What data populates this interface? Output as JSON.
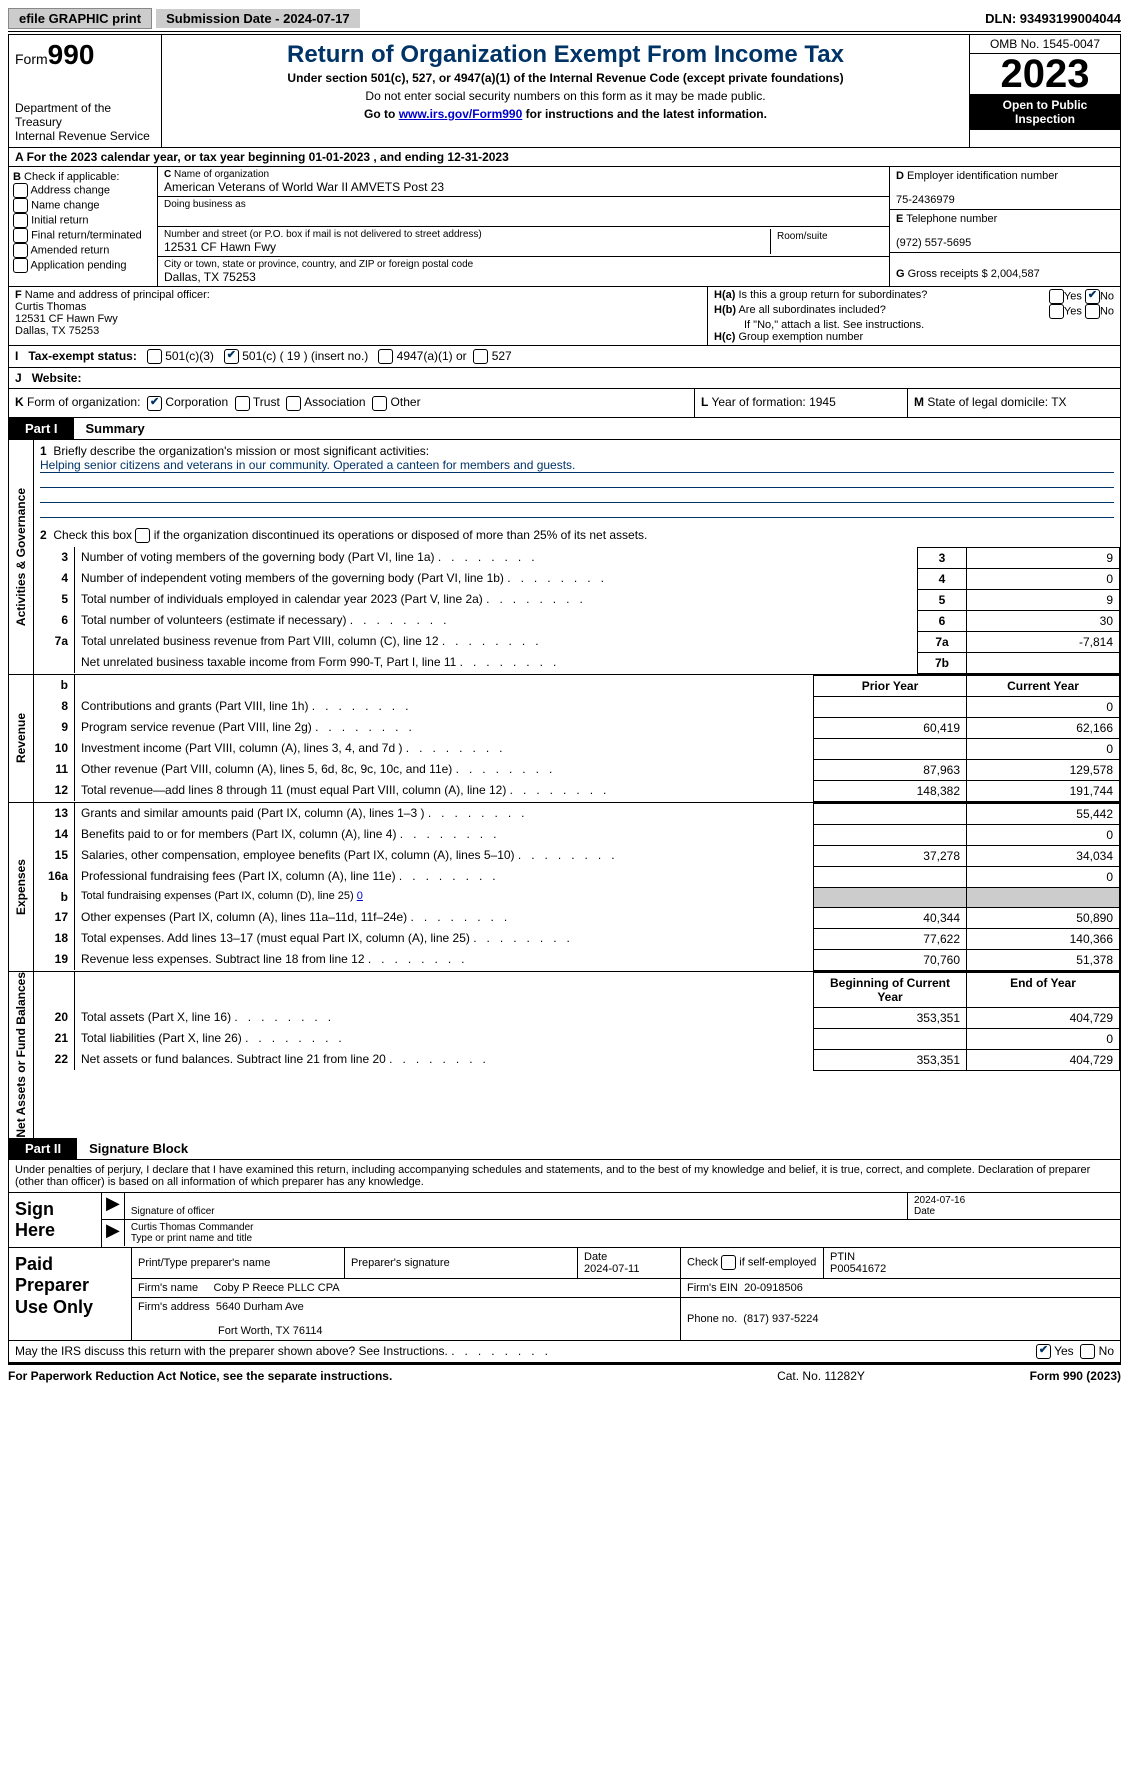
{
  "top": {
    "efile": "efile GRAPHIC print",
    "submission": "Submission Date - 2024-07-17",
    "dln": "DLN: 93493199004044"
  },
  "header": {
    "form_word": "Form",
    "form_num": "990",
    "dept": "Department of the Treasury",
    "irs": "Internal Revenue Service",
    "title": "Return of Organization Exempt From Income Tax",
    "subtitle": "Under section 501(c), 527, or 4947(a)(1) of the Internal Revenue Code (except private foundations)",
    "ssn_note": "Do not enter social security numbers on this form as it may be made public.",
    "goto_pre": "Go to ",
    "goto_link": "www.irs.gov/Form990",
    "goto_post": " for instructions and the latest information.",
    "omb": "OMB No. 1545-0047",
    "year": "2023",
    "openpub": "Open to Public Inspection"
  },
  "row_a": "For the 2023 calendar year, or tax year beginning 01-01-2023   , and ending 12-31-2023",
  "b": {
    "label": "Check if applicable:",
    "opts": [
      "Address change",
      "Name change",
      "Initial return",
      "Final return/terminated",
      "Amended return",
      "Application pending"
    ]
  },
  "c": {
    "name_lbl": "Name of organization",
    "name": "American Veterans of World War II AMVETS Post 23",
    "dba_lbl": "Doing business as",
    "addr_lbl": "Number and street (or P.O. box if mail is not delivered to street address)",
    "room_lbl": "Room/suite",
    "addr": "12531 CF Hawn Fwy",
    "city_lbl": "City or town, state or province, country, and ZIP or foreign postal code",
    "city": "Dallas, TX  75253"
  },
  "d": {
    "lbl": "Employer identification number",
    "val": "75-2436979"
  },
  "e": {
    "lbl": "Telephone number",
    "val": "(972) 557-5695"
  },
  "g": {
    "text": "Gross receipts $ 2,004,587"
  },
  "f": {
    "lbl": "Name and address of principal officer:",
    "name": "Curtis Thomas",
    "addr1": "12531 CF Hawn Fwy",
    "addr2": "Dallas, TX  75253"
  },
  "h": {
    "a": "Is this a group return for subordinates?",
    "b": "Are all subordinates included?",
    "b_note": "If \"No,\" attach a list. See instructions.",
    "c": "Group exemption number",
    "yes": "Yes",
    "no": "No"
  },
  "i": {
    "lbl": "Tax-exempt status:",
    "o1": "501(c)(3)",
    "o2": "501(c) ( 19 ) (insert no.)",
    "o3": "4947(a)(1) or",
    "o4": "527"
  },
  "j": {
    "lbl": "Website:"
  },
  "k": {
    "lbl": "Form of organization:",
    "corp": "Corporation",
    "trust": "Trust",
    "assoc": "Association",
    "other": "Other"
  },
  "l": "Year of formation: 1945",
  "m": "State of legal domicile: TX",
  "part1": {
    "tag": "Part I",
    "title": "Summary"
  },
  "gov": {
    "l1": "Briefly describe the organization's mission or most significant activities:",
    "mission": "Helping senior citizens and veterans in our community. Operated a canteen for members and guests.",
    "l2": "Check this box      if the organization discontinued its operations or disposed of more than 25% of its net assets.",
    "rows": [
      {
        "n": "3",
        "d": "Number of voting members of the governing body (Part VI, line 1a)",
        "box": "3",
        "v": "9"
      },
      {
        "n": "4",
        "d": "Number of independent voting members of the governing body (Part VI, line 1b)",
        "box": "4",
        "v": "0"
      },
      {
        "n": "5",
        "d": "Total number of individuals employed in calendar year 2023 (Part V, line 2a)",
        "box": "5",
        "v": "9"
      },
      {
        "n": "6",
        "d": "Total number of volunteers (estimate if necessary)",
        "box": "6",
        "v": "30"
      },
      {
        "n": "7a",
        "d": "Total unrelated business revenue from Part VIII, column (C), line 12",
        "box": "7a",
        "v": "-7,814"
      },
      {
        "n": "",
        "d": "Net unrelated business taxable income from Form 990-T, Part I, line 11",
        "box": "7b",
        "v": ""
      }
    ]
  },
  "revhdr": {
    "b": "b",
    "prior": "Prior Year",
    "curr": "Current Year"
  },
  "revenue": [
    {
      "n": "8",
      "d": "Contributions and grants (Part VIII, line 1h)",
      "p": "",
      "c": "0"
    },
    {
      "n": "9",
      "d": "Program service revenue (Part VIII, line 2g)",
      "p": "60,419",
      "c": "62,166"
    },
    {
      "n": "10",
      "d": "Investment income (Part VIII, column (A), lines 3, 4, and 7d )",
      "p": "",
      "c": "0"
    },
    {
      "n": "11",
      "d": "Other revenue (Part VIII, column (A), lines 5, 6d, 8c, 9c, 10c, and 11e)",
      "p": "87,963",
      "c": "129,578"
    },
    {
      "n": "12",
      "d": "Total revenue—add lines 8 through 11 (must equal Part VIII, column (A), line 12)",
      "p": "148,382",
      "c": "191,744"
    }
  ],
  "expenses": [
    {
      "n": "13",
      "d": "Grants and similar amounts paid (Part IX, column (A), lines 1–3 )",
      "p": "",
      "c": "55,442"
    },
    {
      "n": "14",
      "d": "Benefits paid to or for members (Part IX, column (A), line 4)",
      "p": "",
      "c": "0"
    },
    {
      "n": "15",
      "d": "Salaries, other compensation, employee benefits (Part IX, column (A), lines 5–10)",
      "p": "37,278",
      "c": "34,034"
    },
    {
      "n": "16a",
      "d": "Professional fundraising fees (Part IX, column (A), line 11e)",
      "p": "",
      "c": "0"
    }
  ],
  "exp16b": {
    "n": "b",
    "d": "Total fundraising expenses (Part IX, column (D), line 25)",
    "v": "0"
  },
  "expenses2": [
    {
      "n": "17",
      "d": "Other expenses (Part IX, column (A), lines 11a–11d, 11f–24e)",
      "p": "40,344",
      "c": "50,890"
    },
    {
      "n": "18",
      "d": "Total expenses. Add lines 13–17 (must equal Part IX, column (A), line 25)",
      "p": "77,622",
      "c": "140,366"
    },
    {
      "n": "19",
      "d": "Revenue less expenses. Subtract line 18 from line 12",
      "p": "70,760",
      "c": "51,378"
    }
  ],
  "nethdr": {
    "beg": "Beginning of Current Year",
    "end": "End of Year"
  },
  "net": [
    {
      "n": "20",
      "d": "Total assets (Part X, line 16)",
      "p": "353,351",
      "c": "404,729"
    },
    {
      "n": "21",
      "d": "Total liabilities (Part X, line 26)",
      "p": "",
      "c": "0"
    },
    {
      "n": "22",
      "d": "Net assets or fund balances. Subtract line 21 from line 20",
      "p": "353,351",
      "c": "404,729"
    }
  ],
  "part2": {
    "tag": "Part II",
    "title": "Signature Block"
  },
  "decl": "Under penalties of perjury, I declare that I have examined this return, including accompanying schedules and statements, and to the best of my knowledge and belief, it is true, correct, and complete. Declaration of preparer (other than officer) is based on all information of which preparer has any knowledge.",
  "sign": {
    "here": "Sign Here",
    "sig_lbl": "Signature of officer",
    "date_lbl": "Date",
    "sig_date": "2024-07-16",
    "name_lbl": "Type or print name and title",
    "name": "Curtis Thomas  Commander"
  },
  "prep": {
    "title": "Paid Preparer Use Only",
    "h_name": "Print/Type preparer's name",
    "h_sig": "Preparer's signature",
    "h_date": "Date",
    "date": "2024-07-11",
    "h_self": "Check       if self-employed",
    "h_ptin": "PTIN",
    "ptin": "P00541672",
    "firm_lbl": "Firm's name",
    "firm": "Coby P Reece PLLC CPA",
    "ein_lbl": "Firm's EIN",
    "ein": "20-0918506",
    "addr_lbl": "Firm's address",
    "addr1": "5640 Durham Ave",
    "addr2": "Fort Worth, TX  76114",
    "phone_lbl": "Phone no.",
    "phone": "(817) 937-5224"
  },
  "discuss": "May the IRS discuss this return with the preparer shown above? See Instructions.",
  "footer": {
    "l": "For Paperwork Reduction Act Notice, see the separate instructions.",
    "m": "Cat. No. 11282Y",
    "r": "Form 990 (2023)"
  },
  "vtabs": {
    "gov": "Activities & Governance",
    "rev": "Revenue",
    "exp": "Expenses",
    "net": "Net Assets or Fund Balances"
  }
}
